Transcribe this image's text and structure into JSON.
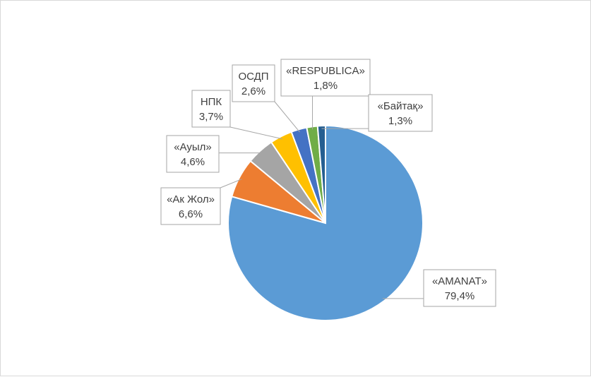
{
  "chart_data": {
    "type": "pie",
    "title": "",
    "legend": "none",
    "slices": [
      {
        "name": "«AMANAT»",
        "value": 79.4,
        "label": "79,4%",
        "color": "#5b9bd5"
      },
      {
        "name": "«Ак Жол»",
        "value": 6.6,
        "label": "6,6%",
        "color": "#ed7d31"
      },
      {
        "name": "«Ауыл»",
        "value": 4.6,
        "label": "4,6%",
        "color": "#a5a5a5"
      },
      {
        "name": "НПК",
        "value": 3.7,
        "label": "3,7%",
        "color": "#ffc000"
      },
      {
        "name": "ОСДП",
        "value": 2.6,
        "label": "2,6%",
        "color": "#4472c4"
      },
      {
        "name": "«RESPUBLICA»",
        "value": 1.8,
        "label": "1,8%",
        "color": "#70ad47"
      },
      {
        "name": "«Байтақ»",
        "value": 1.3,
        "label": "1,3%",
        "color": "#255e91"
      }
    ]
  }
}
